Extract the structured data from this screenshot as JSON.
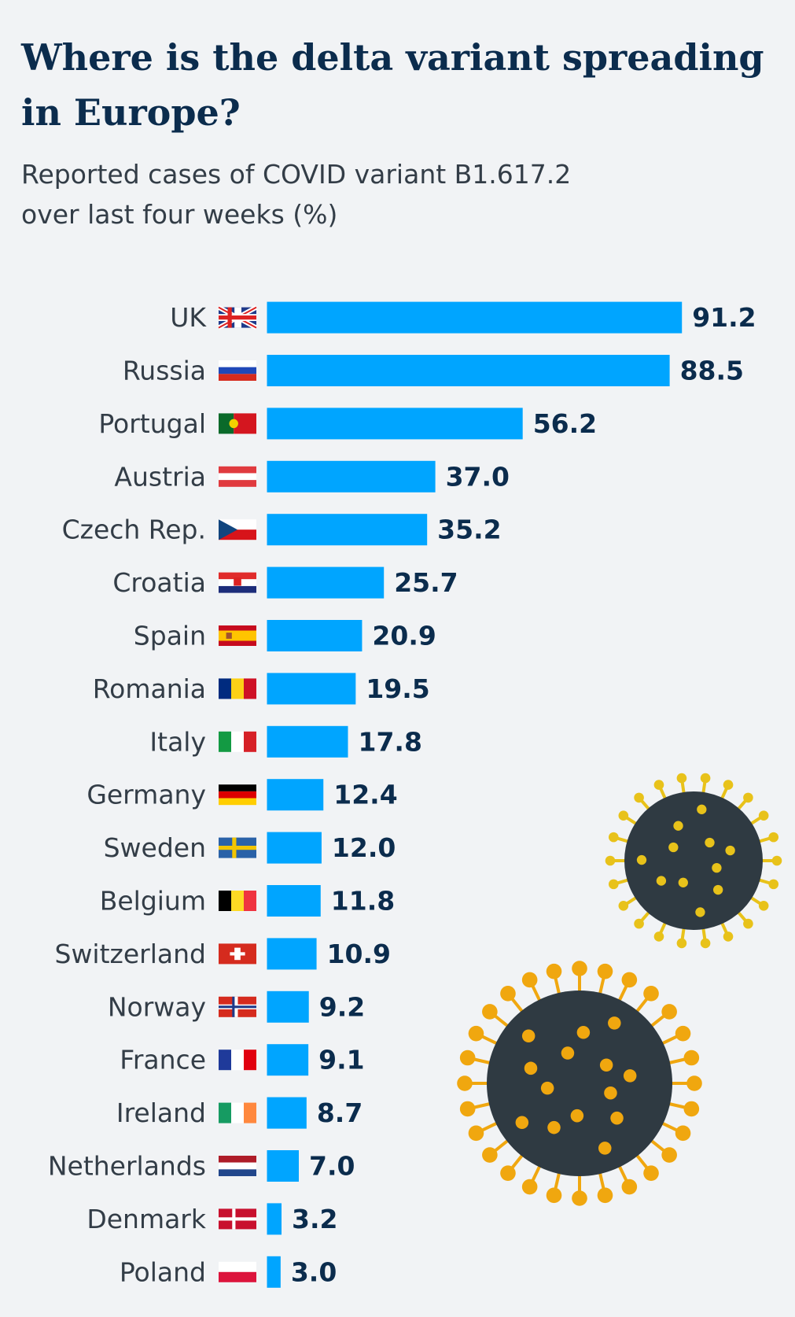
{
  "chart_data": {
    "type": "hbar",
    "title": "Where is the delta variant spreading in Europe?",
    "subtitle": "Reported cases of COVID variant B1.617.2 over last four weeks (%)",
    "categories": [
      "UK",
      "Russia",
      "Portugal",
      "Austria",
      "Czech Rep.",
      "Croatia",
      "Spain",
      "Romania",
      "Italy",
      "Germany",
      "Sweden",
      "Belgium",
      "Switzerland",
      "Norway",
      "France",
      "Ireland",
      "Netherlands",
      "Denmark",
      "Poland"
    ],
    "values": [
      91.2,
      88.5,
      56.2,
      37.0,
      35.2,
      25.7,
      20.9,
      19.5,
      17.8,
      12.4,
      12.0,
      11.8,
      10.9,
      9.2,
      9.1,
      8.7,
      7.0,
      3.2,
      3.0
    ],
    "value_labels": [
      "91.2",
      "88.5",
      "56.2",
      "37.0",
      "35.2",
      "25.7",
      "20.9",
      "19.5",
      "17.8",
      "12.4",
      "12.0",
      "11.8",
      "10.9",
      "9.2",
      "9.1",
      "8.7",
      "7.0",
      "3.2",
      "3.0"
    ],
    "color": "#00a5ff"
  }
}
